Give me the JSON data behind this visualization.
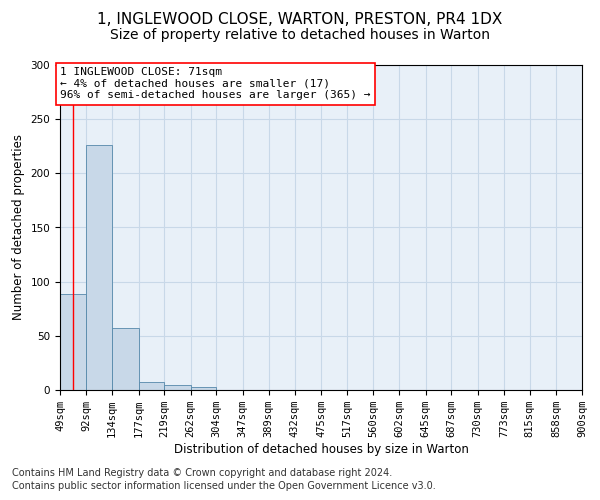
{
  "title_line1": "1, INGLEWOOD CLOSE, WARTON, PRESTON, PR4 1DX",
  "title_line2": "Size of property relative to detached houses in Warton",
  "xlabel": "Distribution of detached houses by size in Warton",
  "ylabel": "Number of detached properties",
  "footnote_line1": "Contains HM Land Registry data © Crown copyright and database right 2024.",
  "footnote_line2": "Contains public sector information licensed under the Open Government Licence v3.0.",
  "bin_edges": [
    49,
    92,
    134,
    177,
    219,
    262,
    304,
    347,
    389,
    432,
    475,
    517,
    560,
    602,
    645,
    687,
    730,
    773,
    815,
    858,
    900
  ],
  "bar_heights": [
    89,
    226,
    57,
    7,
    5,
    3,
    0,
    0,
    0,
    0,
    0,
    0,
    0,
    0,
    0,
    0,
    0,
    0,
    0,
    0
  ],
  "bar_color": "#c8d8e8",
  "bar_edge_color": "#5588aa",
  "bar_edge_width": 0.6,
  "grid_color": "#c8d8e8",
  "background_color": "#e8f0f8",
  "annotation_line1": "1 INGLEWOOD CLOSE: 71sqm",
  "annotation_line2": "← 4% of detached houses are smaller (17)",
  "annotation_line3": "96% of semi-detached houses are larger (365) →",
  "property_line_x": 71,
  "ylim": [
    0,
    300
  ],
  "yticks": [
    0,
    50,
    100,
    150,
    200,
    250,
    300
  ],
  "tick_labels": [
    "49sqm",
    "92sqm",
    "134sqm",
    "177sqm",
    "219sqm",
    "262sqm",
    "304sqm",
    "347sqm",
    "389sqm",
    "432sqm",
    "475sqm",
    "517sqm",
    "560sqm",
    "602sqm",
    "645sqm",
    "687sqm",
    "730sqm",
    "773sqm",
    "815sqm",
    "858sqm",
    "900sqm"
  ],
  "title_fontsize": 11,
  "subtitle_fontsize": 10,
  "axis_label_fontsize": 8.5,
  "tick_fontsize": 7.5,
  "annotation_fontsize": 8,
  "footnote_fontsize": 7
}
